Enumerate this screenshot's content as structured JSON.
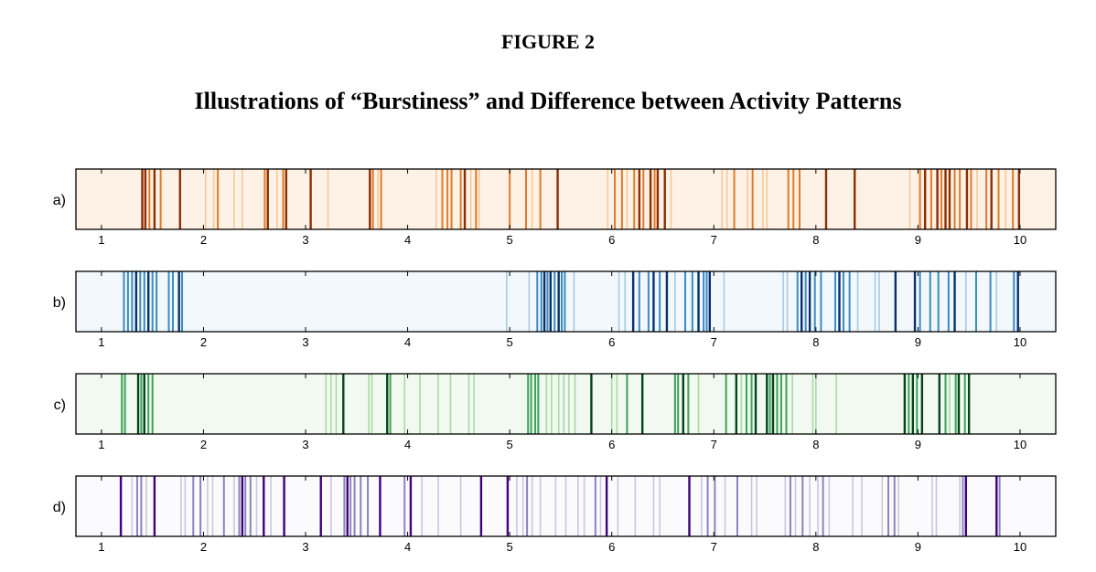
{
  "figure": {
    "label": "FIGURE 2",
    "title": "Illustrations of “Burstiness” and Difference between Activity Patterns"
  },
  "chart_data": [
    {
      "type": "event-raster",
      "panel_label": "a)",
      "xlim": [
        0.75,
        10.35
      ],
      "x_ticks": [
        1,
        2,
        3,
        4,
        5,
        6,
        7,
        8,
        9,
        10
      ],
      "colors": {
        "background": "#fef2e6",
        "light": "#f6c89a",
        "mid": "#e17a27",
        "dark": "#8c2d04"
      },
      "events": [
        {
          "x": 1.4,
          "s": 3
        },
        {
          "x": 1.43,
          "s": 3
        },
        {
          "x": 1.47,
          "s": 2
        },
        {
          "x": 1.52,
          "s": 3
        },
        {
          "x": 1.58,
          "s": 2
        },
        {
          "x": 1.77,
          "s": 3
        },
        {
          "x": 2.02,
          "s": 1
        },
        {
          "x": 2.1,
          "s": 1
        },
        {
          "x": 2.14,
          "s": 2
        },
        {
          "x": 2.3,
          "s": 1
        },
        {
          "x": 2.38,
          "s": 1
        },
        {
          "x": 2.6,
          "s": 2
        },
        {
          "x": 2.63,
          "s": 3
        },
        {
          "x": 2.72,
          "s": 1
        },
        {
          "x": 2.78,
          "s": 2
        },
        {
          "x": 2.81,
          "s": 3
        },
        {
          "x": 3.05,
          "s": 3
        },
        {
          "x": 3.22,
          "s": 1
        },
        {
          "x": 3.63,
          "s": 3
        },
        {
          "x": 3.66,
          "s": 2
        },
        {
          "x": 3.71,
          "s": 1
        },
        {
          "x": 3.74,
          "s": 2
        },
        {
          "x": 4.28,
          "s": 1
        },
        {
          "x": 4.34,
          "s": 2
        },
        {
          "x": 4.39,
          "s": 2
        },
        {
          "x": 4.43,
          "s": 2
        },
        {
          "x": 4.52,
          "s": 2
        },
        {
          "x": 4.56,
          "s": 3
        },
        {
          "x": 4.62,
          "s": 1
        },
        {
          "x": 4.67,
          "s": 2
        },
        {
          "x": 4.7,
          "s": 1
        },
        {
          "x": 5.0,
          "s": 2
        },
        {
          "x": 5.16,
          "s": 2
        },
        {
          "x": 5.22,
          "s": 1
        },
        {
          "x": 5.3,
          "s": 2
        },
        {
          "x": 5.47,
          "s": 3
        },
        {
          "x": 5.96,
          "s": 1
        },
        {
          "x": 6.03,
          "s": 2
        },
        {
          "x": 6.1,
          "s": 2
        },
        {
          "x": 6.15,
          "s": 1
        },
        {
          "x": 6.22,
          "s": 2
        },
        {
          "x": 6.27,
          "s": 3
        },
        {
          "x": 6.31,
          "s": 2
        },
        {
          "x": 6.38,
          "s": 3
        },
        {
          "x": 6.42,
          "s": 2
        },
        {
          "x": 6.45,
          "s": 3
        },
        {
          "x": 6.52,
          "s": 3
        },
        {
          "x": 6.58,
          "s": 1
        },
        {
          "x": 7.08,
          "s": 1
        },
        {
          "x": 7.13,
          "s": 1
        },
        {
          "x": 7.2,
          "s": 2
        },
        {
          "x": 7.33,
          "s": 1
        },
        {
          "x": 7.38,
          "s": 2
        },
        {
          "x": 7.48,
          "s": 1
        },
        {
          "x": 7.52,
          "s": 1
        },
        {
          "x": 7.73,
          "s": 2
        },
        {
          "x": 7.78,
          "s": 2
        },
        {
          "x": 7.84,
          "s": 2
        },
        {
          "x": 8.1,
          "s": 3
        },
        {
          "x": 8.38,
          "s": 3
        },
        {
          "x": 8.92,
          "s": 1
        },
        {
          "x": 9.02,
          "s": 2
        },
        {
          "x": 9.07,
          "s": 3
        },
        {
          "x": 9.13,
          "s": 2
        },
        {
          "x": 9.19,
          "s": 3
        },
        {
          "x": 9.23,
          "s": 2
        },
        {
          "x": 9.27,
          "s": 3
        },
        {
          "x": 9.31,
          "s": 3
        },
        {
          "x": 9.36,
          "s": 2
        },
        {
          "x": 9.41,
          "s": 2
        },
        {
          "x": 9.48,
          "s": 3
        },
        {
          "x": 9.52,
          "s": 2
        },
        {
          "x": 9.58,
          "s": 1
        },
        {
          "x": 9.67,
          "s": 2
        },
        {
          "x": 9.72,
          "s": 3
        },
        {
          "x": 9.79,
          "s": 2
        },
        {
          "x": 9.86,
          "s": 1
        },
        {
          "x": 9.93,
          "s": 2
        },
        {
          "x": 9.99,
          "s": 3
        }
      ]
    },
    {
      "type": "event-raster",
      "panel_label": "b)",
      "xlim": [
        0.75,
        10.35
      ],
      "x_ticks": [
        1,
        2,
        3,
        4,
        5,
        6,
        7,
        8,
        9,
        10
      ],
      "colors": {
        "background": "#f3f8fd",
        "light": "#a6cbe3",
        "mid": "#3a8bc2",
        "dark": "#08306b"
      },
      "events": [
        {
          "x": 1.22,
          "s": 2
        },
        {
          "x": 1.26,
          "s": 2
        },
        {
          "x": 1.3,
          "s": 2
        },
        {
          "x": 1.34,
          "s": 3
        },
        {
          "x": 1.38,
          "s": 2
        },
        {
          "x": 1.42,
          "s": 2
        },
        {
          "x": 1.46,
          "s": 3
        },
        {
          "x": 1.5,
          "s": 2
        },
        {
          "x": 1.54,
          "s": 2
        },
        {
          "x": 1.66,
          "s": 2
        },
        {
          "x": 1.7,
          "s": 2
        },
        {
          "x": 1.76,
          "s": 3
        },
        {
          "x": 1.79,
          "s": 2
        },
        {
          "x": 4.97,
          "s": 1
        },
        {
          "x": 5.19,
          "s": 1
        },
        {
          "x": 5.27,
          "s": 2
        },
        {
          "x": 5.31,
          "s": 2
        },
        {
          "x": 5.34,
          "s": 3
        },
        {
          "x": 5.37,
          "s": 2
        },
        {
          "x": 5.4,
          "s": 3
        },
        {
          "x": 5.44,
          "s": 2
        },
        {
          "x": 5.48,
          "s": 3
        },
        {
          "x": 5.51,
          "s": 2
        },
        {
          "x": 5.54,
          "s": 2
        },
        {
          "x": 5.63,
          "s": 1
        },
        {
          "x": 6.07,
          "s": 1
        },
        {
          "x": 6.13,
          "s": 1
        },
        {
          "x": 6.21,
          "s": 3
        },
        {
          "x": 6.27,
          "s": 2
        },
        {
          "x": 6.36,
          "s": 2
        },
        {
          "x": 6.41,
          "s": 3
        },
        {
          "x": 6.47,
          "s": 2
        },
        {
          "x": 6.54,
          "s": 3
        },
        {
          "x": 6.62,
          "s": 1
        },
        {
          "x": 6.72,
          "s": 2
        },
        {
          "x": 6.79,
          "s": 2
        },
        {
          "x": 6.85,
          "s": 3
        },
        {
          "x": 6.9,
          "s": 2
        },
        {
          "x": 6.93,
          "s": 2
        },
        {
          "x": 6.96,
          "s": 3
        },
        {
          "x": 7.1,
          "s": 1
        },
        {
          "x": 7.68,
          "s": 1
        },
        {
          "x": 7.72,
          "s": 1
        },
        {
          "x": 7.82,
          "s": 2
        },
        {
          "x": 7.86,
          "s": 3
        },
        {
          "x": 7.9,
          "s": 2
        },
        {
          "x": 7.94,
          "s": 3
        },
        {
          "x": 7.99,
          "s": 2
        },
        {
          "x": 8.05,
          "s": 2
        },
        {
          "x": 8.19,
          "s": 2
        },
        {
          "x": 8.23,
          "s": 3
        },
        {
          "x": 8.27,
          "s": 2
        },
        {
          "x": 8.33,
          "s": 2
        },
        {
          "x": 8.41,
          "s": 1
        },
        {
          "x": 8.58,
          "s": 1
        },
        {
          "x": 8.62,
          "s": 1
        },
        {
          "x": 8.78,
          "s": 3
        },
        {
          "x": 8.97,
          "s": 3
        },
        {
          "x": 9.02,
          "s": 2
        },
        {
          "x": 9.12,
          "s": 2
        },
        {
          "x": 9.2,
          "s": 2
        },
        {
          "x": 9.3,
          "s": 2
        },
        {
          "x": 9.36,
          "s": 3
        },
        {
          "x": 9.47,
          "s": 1
        },
        {
          "x": 9.57,
          "s": 2
        },
        {
          "x": 9.71,
          "s": 2
        },
        {
          "x": 9.77,
          "s": 1
        },
        {
          "x": 9.94,
          "s": 2
        },
        {
          "x": 9.98,
          "s": 3
        }
      ]
    },
    {
      "type": "event-raster",
      "panel_label": "c)",
      "xlim": [
        0.75,
        10.35
      ],
      "x_ticks": [
        1,
        2,
        3,
        4,
        5,
        6,
        7,
        8,
        9,
        10
      ],
      "colors": {
        "background": "#f2f9f0",
        "light": "#a8dba5",
        "mid": "#3aa356",
        "dark": "#00441b"
      },
      "events": [
        {
          "x": 1.2,
          "s": 2
        },
        {
          "x": 1.23,
          "s": 2
        },
        {
          "x": 1.36,
          "s": 3
        },
        {
          "x": 1.39,
          "s": 2
        },
        {
          "x": 1.42,
          "s": 3
        },
        {
          "x": 1.46,
          "s": 2
        },
        {
          "x": 1.5,
          "s": 2
        },
        {
          "x": 3.2,
          "s": 1
        },
        {
          "x": 3.25,
          "s": 1
        },
        {
          "x": 3.3,
          "s": 1
        },
        {
          "x": 3.37,
          "s": 3
        },
        {
          "x": 3.62,
          "s": 1
        },
        {
          "x": 3.65,
          "s": 1
        },
        {
          "x": 3.8,
          "s": 3
        },
        {
          "x": 3.83,
          "s": 2
        },
        {
          "x": 3.97,
          "s": 1
        },
        {
          "x": 4.12,
          "s": 1
        },
        {
          "x": 4.3,
          "s": 1
        },
        {
          "x": 4.42,
          "s": 1
        },
        {
          "x": 4.6,
          "s": 1
        },
        {
          "x": 4.65,
          "s": 1
        },
        {
          "x": 5.18,
          "s": 2
        },
        {
          "x": 5.21,
          "s": 2
        },
        {
          "x": 5.25,
          "s": 2
        },
        {
          "x": 5.28,
          "s": 2
        },
        {
          "x": 5.36,
          "s": 1
        },
        {
          "x": 5.41,
          "s": 1
        },
        {
          "x": 5.48,
          "s": 1
        },
        {
          "x": 5.53,
          "s": 1
        },
        {
          "x": 5.58,
          "s": 1
        },
        {
          "x": 5.64,
          "s": 1
        },
        {
          "x": 5.8,
          "s": 3
        },
        {
          "x": 6.0,
          "s": 1
        },
        {
          "x": 6.05,
          "s": 1
        },
        {
          "x": 6.15,
          "s": 2
        },
        {
          "x": 6.3,
          "s": 3
        },
        {
          "x": 6.62,
          "s": 2
        },
        {
          "x": 6.65,
          "s": 2
        },
        {
          "x": 6.7,
          "s": 3
        },
        {
          "x": 6.75,
          "s": 2
        },
        {
          "x": 6.85,
          "s": 1
        },
        {
          "x": 7.12,
          "s": 2
        },
        {
          "x": 7.22,
          "s": 3
        },
        {
          "x": 7.27,
          "s": 1
        },
        {
          "x": 7.32,
          "s": 2
        },
        {
          "x": 7.37,
          "s": 2
        },
        {
          "x": 7.41,
          "s": 3
        },
        {
          "x": 7.52,
          "s": 3
        },
        {
          "x": 7.55,
          "s": 2
        },
        {
          "x": 7.58,
          "s": 3
        },
        {
          "x": 7.62,
          "s": 2
        },
        {
          "x": 7.66,
          "s": 2
        },
        {
          "x": 7.71,
          "s": 2
        },
        {
          "x": 7.77,
          "s": 1
        },
        {
          "x": 7.97,
          "s": 1
        },
        {
          "x": 8.0,
          "s": 1
        },
        {
          "x": 8.2,
          "s": 1
        },
        {
          "x": 8.87,
          "s": 3
        },
        {
          "x": 8.91,
          "s": 2
        },
        {
          "x": 8.95,
          "s": 3
        },
        {
          "x": 8.99,
          "s": 2
        },
        {
          "x": 9.04,
          "s": 3
        },
        {
          "x": 9.21,
          "s": 3
        },
        {
          "x": 9.27,
          "s": 2
        },
        {
          "x": 9.31,
          "s": 1
        },
        {
          "x": 9.37,
          "s": 2
        },
        {
          "x": 9.4,
          "s": 3
        },
        {
          "x": 9.46,
          "s": 2
        },
        {
          "x": 9.5,
          "s": 3
        }
      ]
    },
    {
      "type": "event-raster",
      "panel_label": "d)",
      "xlim": [
        0.75,
        10.35
      ],
      "x_ticks": [
        1,
        2,
        3,
        4,
        5,
        6,
        7,
        8,
        9,
        10
      ],
      "colors": {
        "background": "#fbfbfe",
        "light": "#c9c6e2",
        "mid": "#8b82be",
        "dark": "#3f007d"
      },
      "events": [
        {
          "x": 1.19,
          "s": 3
        },
        {
          "x": 1.3,
          "s": 1
        },
        {
          "x": 1.35,
          "s": 2
        },
        {
          "x": 1.39,
          "s": 2
        },
        {
          "x": 1.44,
          "s": 1
        },
        {
          "x": 1.52,
          "s": 3
        },
        {
          "x": 1.78,
          "s": 1
        },
        {
          "x": 1.82,
          "s": 1
        },
        {
          "x": 1.9,
          "s": 2
        },
        {
          "x": 1.97,
          "s": 2
        },
        {
          "x": 2.04,
          "s": 1
        },
        {
          "x": 2.09,
          "s": 1
        },
        {
          "x": 2.2,
          "s": 2
        },
        {
          "x": 2.3,
          "s": 1
        },
        {
          "x": 2.35,
          "s": 2
        },
        {
          "x": 2.38,
          "s": 3
        },
        {
          "x": 2.41,
          "s": 2
        },
        {
          "x": 2.46,
          "s": 2
        },
        {
          "x": 2.52,
          "s": 1
        },
        {
          "x": 2.59,
          "s": 3
        },
        {
          "x": 2.66,
          "s": 1
        },
        {
          "x": 2.79,
          "s": 3
        },
        {
          "x": 3.15,
          "s": 3
        },
        {
          "x": 3.25,
          "s": 1
        },
        {
          "x": 3.38,
          "s": 2
        },
        {
          "x": 3.41,
          "s": 3
        },
        {
          "x": 3.44,
          "s": 2
        },
        {
          "x": 3.48,
          "s": 2
        },
        {
          "x": 3.54,
          "s": 2
        },
        {
          "x": 3.61,
          "s": 2
        },
        {
          "x": 3.73,
          "s": 3
        },
        {
          "x": 3.97,
          "s": 2
        },
        {
          "x": 4.03,
          "s": 3
        },
        {
          "x": 4.14,
          "s": 1
        },
        {
          "x": 4.3,
          "s": 1
        },
        {
          "x": 4.52,
          "s": 1
        },
        {
          "x": 4.72,
          "s": 3
        },
        {
          "x": 4.98,
          "s": 3
        },
        {
          "x": 5.07,
          "s": 1
        },
        {
          "x": 5.13,
          "s": 1
        },
        {
          "x": 5.17,
          "s": 2
        },
        {
          "x": 5.22,
          "s": 1
        },
        {
          "x": 5.3,
          "s": 1
        },
        {
          "x": 5.45,
          "s": 1
        },
        {
          "x": 5.55,
          "s": 1
        },
        {
          "x": 5.67,
          "s": 1
        },
        {
          "x": 5.73,
          "s": 1
        },
        {
          "x": 5.84,
          "s": 2
        },
        {
          "x": 5.89,
          "s": 1
        },
        {
          "x": 5.95,
          "s": 3
        },
        {
          "x": 6.06,
          "s": 1
        },
        {
          "x": 6.23,
          "s": 1
        },
        {
          "x": 6.41,
          "s": 1
        },
        {
          "x": 6.47,
          "s": 1
        },
        {
          "x": 6.76,
          "s": 3
        },
        {
          "x": 6.88,
          "s": 1
        },
        {
          "x": 6.94,
          "s": 2
        },
        {
          "x": 7.01,
          "s": 2
        },
        {
          "x": 7.11,
          "s": 1
        },
        {
          "x": 7.23,
          "s": 2
        },
        {
          "x": 7.37,
          "s": 1
        },
        {
          "x": 7.42,
          "s": 1
        },
        {
          "x": 7.7,
          "s": 1
        },
        {
          "x": 7.75,
          "s": 2
        },
        {
          "x": 7.8,
          "s": 1
        },
        {
          "x": 7.87,
          "s": 2
        },
        {
          "x": 7.94,
          "s": 1
        },
        {
          "x": 8.02,
          "s": 1
        },
        {
          "x": 8.07,
          "s": 2
        },
        {
          "x": 8.13,
          "s": 1
        },
        {
          "x": 8.36,
          "s": 1
        },
        {
          "x": 8.45,
          "s": 1
        },
        {
          "x": 8.65,
          "s": 1
        },
        {
          "x": 8.71,
          "s": 2
        },
        {
          "x": 8.77,
          "s": 2
        },
        {
          "x": 8.81,
          "s": 1
        },
        {
          "x": 9.14,
          "s": 1
        },
        {
          "x": 9.18,
          "s": 1
        },
        {
          "x": 9.41,
          "s": 1
        },
        {
          "x": 9.44,
          "s": 2
        },
        {
          "x": 9.47,
          "s": 3
        },
        {
          "x": 9.77,
          "s": 3
        },
        {
          "x": 9.8,
          "s": 2
        }
      ]
    }
  ]
}
